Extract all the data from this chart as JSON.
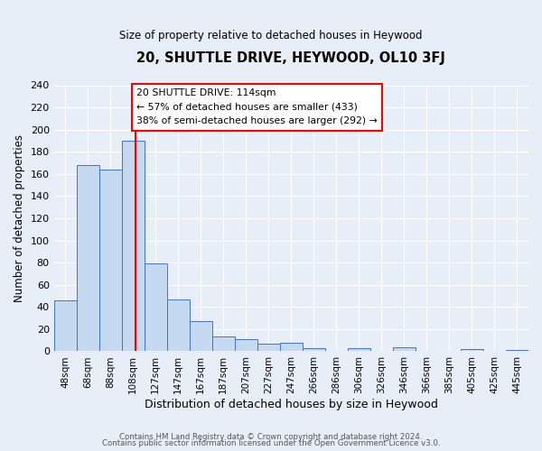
{
  "title": "20, SHUTTLE DRIVE, HEYWOOD, OL10 3FJ",
  "subtitle": "Size of property relative to detached houses in Heywood",
  "xlabel": "Distribution of detached houses by size in Heywood",
  "ylabel": "Number of detached properties",
  "bar_labels": [
    "48sqm",
    "68sqm",
    "88sqm",
    "108sqm",
    "127sqm",
    "147sqm",
    "167sqm",
    "187sqm",
    "207sqm",
    "227sqm",
    "247sqm",
    "266sqm",
    "286sqm",
    "306sqm",
    "326sqm",
    "346sqm",
    "366sqm",
    "385sqm",
    "405sqm",
    "425sqm",
    "445sqm"
  ],
  "bar_values": [
    46,
    168,
    164,
    190,
    79,
    47,
    27,
    13,
    11,
    7,
    8,
    3,
    0,
    3,
    0,
    4,
    0,
    0,
    2,
    0,
    1
  ],
  "bar_color": "#c5d9f0",
  "bar_edge_color": "#4472c4",
  "background_color": "#e8eef8",
  "grid_color": "#ffffff",
  "vline_color": "red",
  "annotation_title": "20 SHUTTLE DRIVE: 114sqm",
  "annotation_line1": "← 57% of detached houses are smaller (433)",
  "annotation_line2": "38% of semi-detached houses are larger (292) →",
  "annotation_box_color": "white",
  "annotation_box_edge": "red",
  "ylim": [
    0,
    240
  ],
  "yticks": [
    0,
    20,
    40,
    60,
    80,
    100,
    120,
    140,
    160,
    180,
    200,
    220,
    240
  ],
  "footer1": "Contains HM Land Registry data © Crown copyright and database right 2024.",
  "footer2": "Contains public sector information licensed under the Open Government Licence v3.0."
}
